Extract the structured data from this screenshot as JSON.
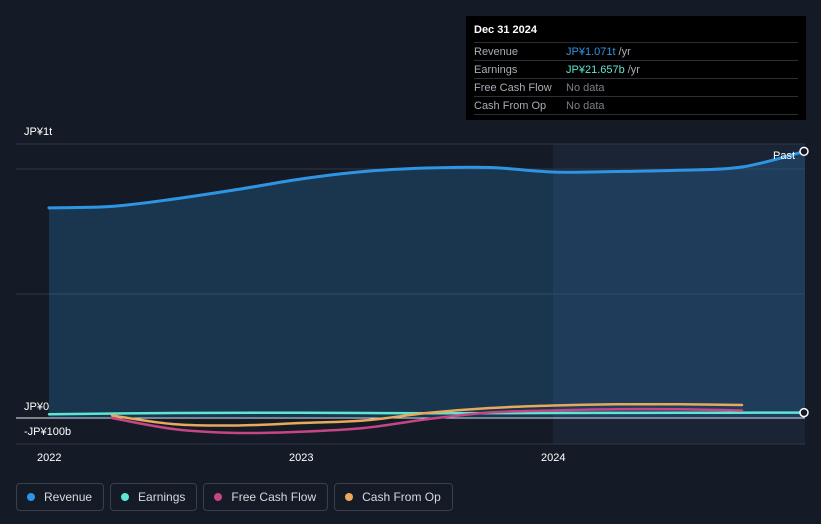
{
  "chart_data": {
    "type": "line",
    "x_unit": "year",
    "xlim": [
      2022,
      2025
    ],
    "ylim": [
      -100,
      1000
    ],
    "y_ticks": [
      {
        "value": 1000,
        "label": "JP¥1t"
      },
      {
        "value": 0,
        "label": "JP¥0"
      },
      {
        "value": -100,
        "label": "-JP¥100b"
      }
    ],
    "x_ticks": [
      {
        "value": 2022,
        "label": "2022"
      },
      {
        "value": 2023,
        "label": "2023"
      },
      {
        "value": 2024,
        "label": "2024"
      }
    ],
    "past_label": "Past",
    "highlight_start": 2024,
    "series": [
      {
        "name": "Revenue",
        "color": "#2d95e3",
        "area": true,
        "x": [
          2022.0,
          2022.25,
          2022.5,
          2022.75,
          2023.0,
          2023.25,
          2023.5,
          2023.75,
          2024.0,
          2024.25,
          2024.5,
          2024.75,
          2025.0
        ],
        "y": [
          844,
          850,
          880,
          918,
          960,
          990,
          1004,
          1006,
          988,
          990,
          995,
          1008,
          1071
        ]
      },
      {
        "name": "Earnings",
        "color": "#5ee6d2",
        "area": false,
        "x": [
          2022.0,
          2022.5,
          2023.0,
          2023.5,
          2024.0,
          2024.5,
          2025.0
        ],
        "y": [
          15,
          20,
          21,
          19,
          20,
          21,
          21.657
        ]
      },
      {
        "name": "Free Cash Flow",
        "color": "#c64584",
        "area": false,
        "x": [
          2022.25,
          2022.5,
          2022.75,
          2023.0,
          2023.25,
          2023.5,
          2023.75,
          2024.0,
          2024.25,
          2024.5,
          2024.75
        ],
        "y": [
          0,
          -45,
          -60,
          -55,
          -40,
          -5,
          22,
          30,
          35,
          35,
          30
        ]
      },
      {
        "name": "Cash From Op",
        "color": "#e8a95a",
        "area": false,
        "x": [
          2022.25,
          2022.5,
          2022.75,
          2023.0,
          2023.25,
          2023.5,
          2023.75,
          2024.0,
          2024.25,
          2024.5,
          2024.75
        ],
        "y": [
          10,
          -25,
          -30,
          -20,
          -10,
          20,
          40,
          50,
          55,
          55,
          52
        ]
      }
    ],
    "legend": [
      "Revenue",
      "Earnings",
      "Free Cash Flow",
      "Cash From Op"
    ]
  },
  "tooltip": {
    "date": "Dec 31 2024",
    "rows": [
      {
        "label": "Revenue",
        "value": "JP¥1.071t",
        "unit": "/yr",
        "color": "#2d95e3"
      },
      {
        "label": "Earnings",
        "value": "JP¥21.657b",
        "unit": "/yr",
        "color": "#5ee6d2"
      },
      {
        "label": "Free Cash Flow",
        "value": "No data",
        "unit": "",
        "color": "#7a7f88"
      },
      {
        "label": "Cash From Op",
        "value": "No data",
        "unit": "",
        "color": "#7a7f88"
      }
    ]
  },
  "legend": {
    "items": [
      {
        "label": "Revenue",
        "color": "#2d95e3"
      },
      {
        "label": "Earnings",
        "color": "#5ee6d2"
      },
      {
        "label": "Free Cash Flow",
        "color": "#c64584"
      },
      {
        "label": "Cash From Op",
        "color": "#e8a95a"
      }
    ]
  }
}
